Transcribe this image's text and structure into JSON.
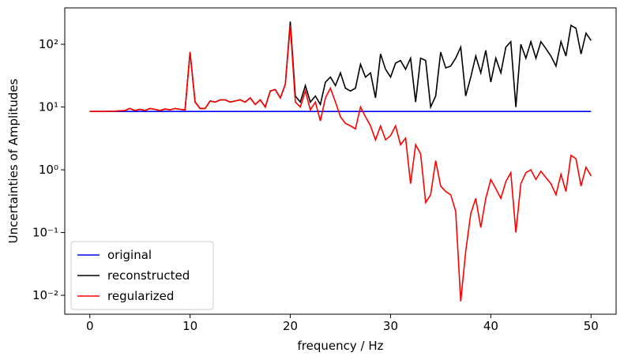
{
  "chart_data": {
    "type": "line",
    "xlabel": "frequency / Hz",
    "ylabel": "Uncertainties of Amplitudes",
    "x": [
      0,
      0.5,
      1,
      1.5,
      2,
      2.5,
      3,
      3.5,
      4,
      4.5,
      5,
      5.5,
      6,
      6.5,
      7,
      7.5,
      8,
      8.5,
      9,
      9.5,
      10,
      10.5,
      11,
      11.5,
      12,
      12.5,
      13,
      13.5,
      14,
      14.5,
      15,
      15.5,
      16,
      16.5,
      17,
      17.5,
      18,
      18.5,
      19,
      19.5,
      20,
      20.5,
      21,
      21.5,
      22,
      22.5,
      23,
      23.5,
      24,
      24.5,
      25,
      25.5,
      26,
      26.5,
      27,
      27.5,
      28,
      28.5,
      29,
      29.5,
      30,
      30.5,
      31,
      31.5,
      32,
      32.5,
      33,
      33.5,
      34,
      34.5,
      35,
      35.5,
      36,
      36.5,
      37,
      37.5,
      38,
      38.5,
      39,
      39.5,
      40,
      40.5,
      41,
      41.5,
      42,
      42.5,
      43,
      43.5,
      44,
      44.5,
      45,
      45.5,
      46,
      46.5,
      47,
      47.5,
      48,
      48.5,
      49,
      49.5,
      50
    ],
    "series": [
      {
        "name": "original",
        "color": "#0000ff",
        "values": [
          8.5,
          8.5,
          8.5,
          8.5,
          8.5,
          8.5,
          8.5,
          8.5,
          8.5,
          8.5,
          8.5,
          8.5,
          8.5,
          8.5,
          8.5,
          8.5,
          8.5,
          8.5,
          8.5,
          8.5,
          8.5,
          8.5,
          8.5,
          8.5,
          8.5,
          8.5,
          8.5,
          8.5,
          8.5,
          8.5,
          8.5,
          8.5,
          8.5,
          8.5,
          8.5,
          8.5,
          8.5,
          8.5,
          8.5,
          8.5,
          8.5,
          8.5,
          8.5,
          8.5,
          8.5,
          8.5,
          8.5,
          8.5,
          8.5,
          8.5,
          8.5,
          8.5,
          8.5,
          8.5,
          8.5,
          8.5,
          8.5,
          8.5,
          8.5,
          8.5,
          8.5,
          8.5,
          8.5,
          8.5,
          8.5,
          8.5,
          8.5,
          8.5,
          8.5,
          8.5,
          8.5,
          8.5,
          8.5,
          8.5,
          8.5,
          8.5,
          8.5,
          8.5,
          8.5,
          8.5,
          8.5,
          8.5,
          8.5,
          8.5,
          8.5,
          8.5,
          8.5,
          8.5,
          8.5,
          8.5,
          8.5,
          8.5,
          8.5,
          8.5,
          8.5,
          8.5,
          8.5,
          8.5,
          8.5,
          8.5,
          8.5
        ]
      },
      {
        "name": "reconstructed",
        "color": "#000000",
        "values": [
          8.5,
          8.5,
          8.5,
          8.5,
          8.6,
          8.6,
          8.7,
          8.8,
          9.5,
          8.8,
          9.2,
          8.8,
          9.5,
          9.2,
          8.8,
          9.3,
          9,
          9.5,
          9.2,
          9,
          75,
          12,
          9.5,
          9.5,
          12.5,
          12,
          13,
          13,
          12,
          12.5,
          13,
          12,
          14,
          11,
          13,
          10,
          18,
          19,
          14,
          23,
          230,
          15,
          12,
          22,
          12,
          15,
          11,
          25,
          30,
          22,
          35,
          20,
          18,
          20,
          48,
          30,
          35,
          14,
          70,
          40,
          30,
          50,
          55,
          40,
          60,
          12,
          60,
          55,
          10,
          15,
          75,
          42,
          45,
          60,
          90,
          15,
          30,
          65,
          35,
          80,
          25,
          60,
          35,
          90,
          110,
          10,
          100,
          60,
          110,
          60,
          110,
          85,
          65,
          45,
          110,
          65,
          200,
          180,
          70,
          150,
          115
        ]
      },
      {
        "name": "regularized",
        "color": "#ff0000",
        "values": [
          8.5,
          8.5,
          8.5,
          8.5,
          8.6,
          8.6,
          8.7,
          8.8,
          9.5,
          8.8,
          9.2,
          8.8,
          9.5,
          9.2,
          8.8,
          9.3,
          9,
          9.5,
          9.2,
          9,
          75,
          12,
          9.5,
          9.5,
          12.5,
          12,
          13,
          13,
          12,
          12.5,
          13,
          12,
          14,
          11,
          13,
          10,
          18,
          19,
          14,
          23,
          200,
          12,
          10,
          18,
          9,
          12,
          6,
          14,
          20,
          12,
          7,
          5.5,
          5,
          4.5,
          10,
          7,
          5,
          3,
          5,
          3,
          3.5,
          5,
          2.5,
          3.2,
          0.6,
          2.5,
          1.8,
          0.3,
          0.4,
          1.4,
          0.55,
          0.45,
          0.4,
          0.22,
          0.008,
          0.05,
          0.2,
          0.35,
          0.12,
          0.35,
          0.7,
          0.5,
          0.35,
          0.65,
          0.9,
          0.1,
          0.6,
          0.9,
          1.0,
          0.7,
          0.95,
          0.75,
          0.6,
          0.4,
          0.85,
          0.45,
          1.7,
          1.5,
          0.55,
          1.1,
          0.8
        ]
      }
    ],
    "xlim": [
      -2.5,
      52.5
    ],
    "xticks": [
      0,
      10,
      20,
      30,
      40,
      50
    ],
    "ylim": [
      0.005,
      380
    ],
    "ylog": true,
    "yticks": [
      {
        "value": 0.01,
        "label": "10⁻²"
      },
      {
        "value": 0.1,
        "label": "10⁻¹"
      },
      {
        "value": 1,
        "label": "10⁰"
      },
      {
        "value": 10,
        "label": "10¹"
      },
      {
        "value": 100,
        "label": "10²"
      }
    ],
    "legend": "lower left"
  }
}
